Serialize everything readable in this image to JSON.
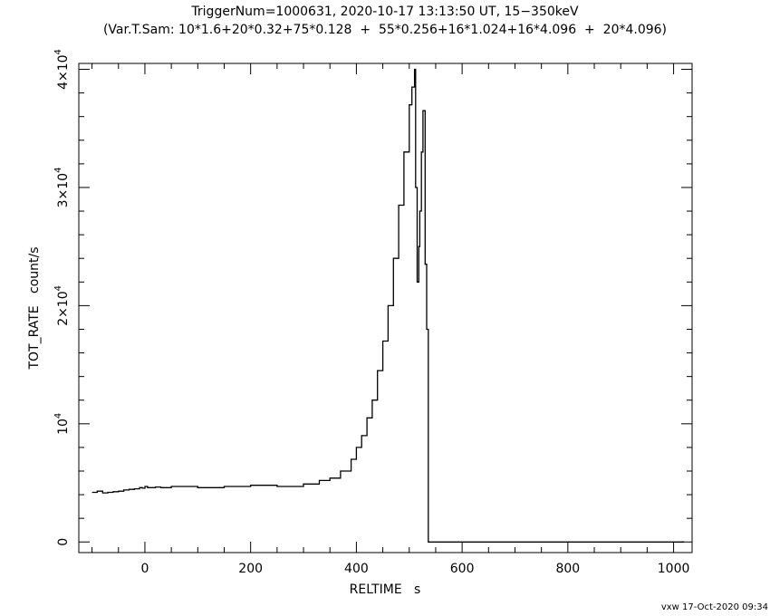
{
  "chart_data": {
    "type": "line",
    "title_line1": "TriggerNum=1000631, 2020-10-17 13:13:50 UT, 15−350keV",
    "title_line2": "(Var.T.Sam: 10*1.6+20*0.32+75*0.128  +  55*0.256+16*1.024+16*4.096  +  20*4.096)",
    "xlabel": "RELTIME   s",
    "ylabel": "TOT_RATE   count/s",
    "footer": "vxw 17-Oct-2020 09:34",
    "xlim": [
      -125,
      1035
    ],
    "ylim": [
      -900,
      40500
    ],
    "x_ticks": [
      0,
      200,
      400,
      600,
      800,
      1000
    ],
    "x_tick_labels": [
      "0",
      "200",
      "400",
      "600",
      "800",
      "1000"
    ],
    "y_ticks": [
      0,
      10000,
      20000,
      30000,
      40000
    ],
    "y_tick_labels": [
      {
        "base": "0",
        "exp": ""
      },
      {
        "base": "10",
        "exp": "4"
      },
      {
        "base": "2×10",
        "exp": "4"
      },
      {
        "base": "3×10",
        "exp": "4"
      },
      {
        "base": "4×10",
        "exp": "4"
      }
    ],
    "grid": false,
    "series": [
      {
        "x": [
          -100,
          -90,
          -80,
          -70,
          -60,
          -50,
          -40,
          -30,
          -20,
          -10,
          -5,
          0,
          5,
          10,
          20,
          30,
          50,
          100,
          150,
          200,
          250,
          300,
          330,
          350,
          370,
          390,
          400,
          410,
          420,
          430,
          440,
          450,
          460,
          470,
          480,
          490,
          500,
          505,
          510,
          512,
          515,
          518,
          520,
          523,
          526,
          530,
          533,
          536,
          1020
        ],
        "y": [
          4200,
          4300,
          4150,
          4200,
          4250,
          4300,
          4400,
          4450,
          4500,
          4600,
          4550,
          4700,
          4600,
          4600,
          4650,
          4600,
          4700,
          4600,
          4700,
          4800,
          4700,
          4900,
          5200,
          5400,
          6000,
          7000,
          8000,
          9000,
          10500,
          12000,
          14500,
          17000,
          20000,
          24000,
          28500,
          33000,
          37000,
          38500,
          40000,
          30000,
          22000,
          25000,
          28000,
          33000,
          36500,
          23500,
          18000,
          0,
          0
        ]
      }
    ]
  }
}
